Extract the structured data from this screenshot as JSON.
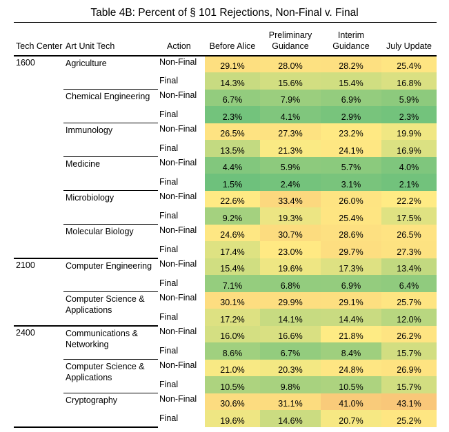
{
  "title": "Table 4B: Percent of § 101 Rejections,  Non-Final v. Final",
  "headers": {
    "tech_center": "Tech Center",
    "art_unit": "Art Unit Tech",
    "action": "Action",
    "cols": [
      "Before Alice",
      "Preliminary Guidance",
      "Interim Guidance",
      "July Update"
    ]
  },
  "labels": {
    "non_final": "Non-Final",
    "final": "Final"
  },
  "groups": [
    {
      "tc": "1600",
      "unit": "Agriculture",
      "nf": [
        "29.1%",
        "28.0%",
        "28.2%",
        "25.4%"
      ],
      "f": [
        "14.3%",
        "15.6%",
        "15.4%",
        "16.8%"
      ]
    },
    {
      "tc": "",
      "unit": "Chemical Engineering",
      "nf": [
        "6.7%",
        "7.9%",
        "6.9%",
        "5.9%"
      ],
      "f": [
        "2.3%",
        "4.1%",
        "2.9%",
        "2.3%"
      ]
    },
    {
      "tc": "",
      "unit": "Immunology",
      "nf": [
        "26.5%",
        "27.3%",
        "23.2%",
        "19.9%"
      ],
      "f": [
        "13.5%",
        "21.3%",
        "24.1%",
        "16.9%"
      ]
    },
    {
      "tc": "",
      "unit": "Medicine",
      "nf": [
        "4.4%",
        "5.9%",
        "5.7%",
        "4.0%"
      ],
      "f": [
        "1.5%",
        "2.4%",
        "3.1%",
        "2.1%"
      ]
    },
    {
      "tc": "",
      "unit": "Microbiology",
      "nf": [
        "22.6%",
        "33.4%",
        "26.0%",
        "22.2%"
      ],
      "f": [
        "9.2%",
        "19.3%",
        "25.4%",
        "17.5%"
      ]
    },
    {
      "tc": "",
      "unit": "Molecular Biology",
      "nf": [
        "24.6%",
        "30.7%",
        "28.6%",
        "26.5%"
      ],
      "f": [
        "17.4%",
        "23.0%",
        "29.7%",
        "27.3%"
      ]
    },
    {
      "tc": "2100",
      "unit": "Computer Engineering",
      "nf": [
        "15.4%",
        "19.6%",
        "17.3%",
        "13.4%"
      ],
      "f": [
        "7.1%",
        "6.8%",
        "6.9%",
        "6.4%"
      ]
    },
    {
      "tc": "",
      "unit": "Computer Science & Applications",
      "nf": [
        "30.1%",
        "29.9%",
        "29.1%",
        "25.7%"
      ],
      "f": [
        "17.2%",
        "14.1%",
        "14.4%",
        "12.0%"
      ]
    },
    {
      "tc": "2400",
      "unit": "Communications & Networking",
      "nf": [
        "16.0%",
        "16.6%",
        "21.8%",
        "26.2%"
      ],
      "f": [
        "8.6%",
        "6.7%",
        "8.4%",
        "15.7%"
      ]
    },
    {
      "tc": "",
      "unit": "Computer Science & Applications",
      "nf": [
        "21.0%",
        "20.3%",
        "24.8%",
        "26.9%"
      ],
      "f": [
        "10.5%",
        "9.8%",
        "10.5%",
        "15.7%"
      ]
    },
    {
      "tc": "",
      "unit": "Cryptography",
      "nf": [
        "30.6%",
        "31.1%",
        "41.0%",
        "43.1%"
      ],
      "f": [
        "19.6%",
        "14.6%",
        "20.7%",
        "25.2%"
      ]
    }
  ]
}
